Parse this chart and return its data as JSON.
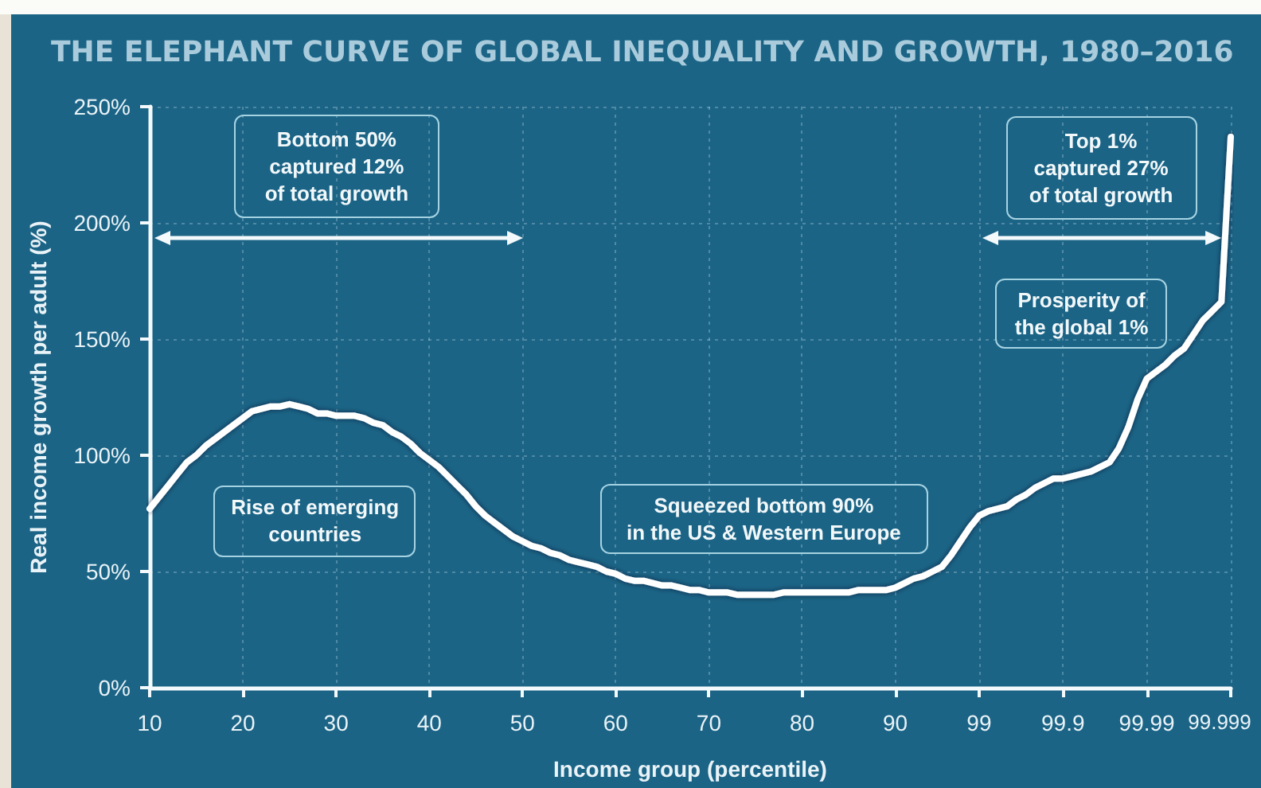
{
  "chart_data": {
    "type": "line",
    "title": "THE ELEPHANT CURVE OF GLOBAL INEQUALITY AND GROWTH, 1980–2016",
    "xlabel": "Income group (percentile)",
    "ylabel": "Real income growth per adult (%)",
    "categories": [
      "10",
      null,
      null,
      null,
      null,
      null,
      null,
      null,
      null,
      null,
      "20",
      null,
      null,
      null,
      null,
      null,
      null,
      null,
      null,
      null,
      "30",
      null,
      null,
      null,
      null,
      null,
      null,
      null,
      null,
      null,
      "40",
      null,
      null,
      null,
      null,
      null,
      null,
      null,
      null,
      null,
      "50",
      null,
      null,
      null,
      null,
      null,
      null,
      null,
      null,
      null,
      "60",
      null,
      null,
      null,
      null,
      null,
      null,
      null,
      null,
      null,
      "70",
      null,
      null,
      null,
      null,
      null,
      null,
      null,
      null,
      null,
      "80",
      null,
      null,
      null,
      null,
      null,
      null,
      null,
      null,
      null,
      "90",
      null,
      null,
      null,
      null,
      null,
      null,
      null,
      null,
      "99",
      null,
      null,
      null,
      null,
      null,
      null,
      null,
      null,
      "99.9",
      null,
      null,
      null,
      null,
      null,
      null,
      null,
      null,
      "99.99",
      null,
      null,
      null,
      null,
      null,
      null,
      null,
      null,
      "99.999"
    ],
    "values": [
      77,
      82,
      87,
      92,
      97,
      100,
      104,
      107,
      110,
      113,
      116,
      119,
      120,
      121,
      121,
      122,
      121,
      120,
      118,
      118,
      117,
      117,
      117,
      116,
      114,
      113,
      110,
      108,
      105,
      101,
      98,
      95,
      91,
      87,
      83,
      78,
      74,
      71,
      68,
      65,
      63,
      61,
      60,
      58,
      57,
      55,
      54,
      53,
      52,
      50,
      49,
      47,
      46,
      46,
      45,
      44,
      44,
      43,
      42,
      42,
      41,
      41,
      41,
      40,
      40,
      40,
      40,
      40,
      41,
      41,
      41,
      41,
      41,
      41,
      41,
      41,
      42,
      42,
      42,
      42,
      43,
      45,
      47,
      48,
      50,
      52,
      57,
      63,
      69,
      74,
      76,
      77,
      78,
      81,
      83,
      86,
      88,
      90,
      90,
      91,
      92,
      93,
      95,
      97,
      103,
      112,
      124,
      133,
      136,
      139,
      143,
      146,
      152,
      158,
      162,
      166,
      237
    ],
    "color": "#ffffff",
    "ylim": [
      0,
      250
    ],
    "yticks": [
      {
        "value": 0,
        "label": "0%"
      },
      {
        "value": 50,
        "label": "50%"
      },
      {
        "value": 100,
        "label": "100%"
      },
      {
        "value": 150,
        "label": "150%"
      },
      {
        "value": 200,
        "label": "200%"
      },
      {
        "value": 250,
        "label": "250%"
      }
    ],
    "grid": true,
    "marker": "none",
    "line_style": "solid",
    "annotations": [
      "Bottom 50%\ncaptured 12%\nof total growth",
      "Top 1%\ncaptured 27%\nof total growth",
      "Prosperity of\nthe global 1%",
      "Rise of emerging\ncountries",
      "Squeezed bottom 90%\nin the US & Western Europe"
    ]
  }
}
